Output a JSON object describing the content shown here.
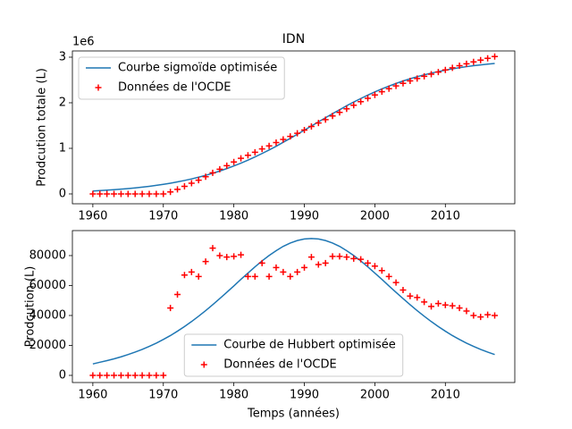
{
  "chart_data": [
    {
      "type": "line",
      "title": "IDN",
      "y_label": "Prodcution totale (L)",
      "y_offset_label": "1e6",
      "x": [
        1960,
        1961,
        1962,
        1963,
        1964,
        1965,
        1966,
        1967,
        1968,
        1969,
        1970,
        1971,
        1972,
        1973,
        1974,
        1975,
        1976,
        1977,
        1978,
        1979,
        1980,
        1981,
        1982,
        1983,
        1984,
        1985,
        1986,
        1987,
        1988,
        1989,
        1990,
        1991,
        1992,
        1993,
        1994,
        1995,
        1996,
        1997,
        1998,
        1999,
        2000,
        2001,
        2002,
        2003,
        2004,
        2005,
        2006,
        2007,
        2008,
        2009,
        2010,
        2011,
        2012,
        2013,
        2014,
        2015,
        2016,
        2017
      ],
      "series": [
        {
          "name": "Courbe sigmoïde optimisée",
          "type": "line",
          "color": "#1f77b4",
          "values": [
            63700,
            73200,
            82500,
            92800,
            104600,
            117800,
            132400,
            149000,
            167400,
            187400,
            210600,
            236000,
            264000,
            295000,
            329300,
            367000,
            408200,
            453600,
            502500,
            556000,
            613200,
            675700,
            741300,
            812000,
            886900,
            964400,
            1045600,
            1133100,
            1218800,
            1308200,
            1398700,
            1490000,
            1581300,
            1671800,
            1761200,
            1846900,
            1934400,
            2015600,
            2093100,
            2168000,
            2238700,
            2304300,
            2366800,
            2424000,
            2477500,
            2526400,
            2571800,
            2613000,
            2650700,
            2685000,
            2716000,
            2744000,
            2769400,
            2792600,
            2812600,
            2831000,
            2847600,
            2862200
          ]
        },
        {
          "name": "Données de l'OCDE",
          "type": "scatter",
          "color": "#ff0000",
          "values": [
            0,
            0,
            0,
            0,
            0,
            0,
            0,
            0,
            0,
            0,
            0,
            45000,
            99000,
            166000,
            235000,
            301000,
            377000,
            462000,
            542000,
            621000,
            700500,
            781000,
            847000,
            913000,
            988000,
            1054000,
            1126000,
            1195000,
            1261000,
            1330000,
            1402000,
            1481000,
            1555000,
            1630000,
            1709500,
            1789000,
            1868000,
            1946000,
            2023500,
            2098500,
            2171500,
            2241500,
            2307500,
            2369500,
            2426500,
            2479500,
            2531500,
            2580500,
            2626500,
            2674500,
            2721500,
            2768000,
            2813000,
            2856000,
            2896000,
            2935000,
            2975500,
            3015500
          ]
        }
      ],
      "xlim": [
        1957.1,
        2019.85
      ],
      "xticks": [
        1960,
        1970,
        1980,
        1990,
        2000,
        2010
      ],
      "ylim": [
        -216000,
        3137000
      ],
      "yticks": [
        0,
        {
          "value": 1000000,
          "label": "1"
        },
        {
          "value": 2000000,
          "label": "2"
        },
        {
          "value": 3000000,
          "label": "3"
        }
      ],
      "legend": "upper left"
    },
    {
      "type": "line",
      "y_label": "Prodcution (L)",
      "x_label": "Temps (années)",
      "x": [
        1960,
        1961,
        1962,
        1963,
        1964,
        1965,
        1966,
        1967,
        1968,
        1969,
        1970,
        1971,
        1972,
        1973,
        1974,
        1975,
        1976,
        1977,
        1978,
        1979,
        1980,
        1981,
        1982,
        1983,
        1984,
        1985,
        1986,
        1987,
        1988,
        1989,
        1990,
        1991,
        1992,
        1993,
        1994,
        1995,
        1996,
        1997,
        1998,
        1999,
        2000,
        2001,
        2002,
        2003,
        2004,
        2005,
        2006,
        2007,
        2008,
        2009,
        2010,
        2011,
        2012,
        2013,
        2014,
        2015,
        2016,
        2017
      ],
      "series": [
        {
          "name": "Courbe de Hubbert optimisée",
          "type": "line",
          "color": "#1f77b4",
          "values": [
            7650,
            8760,
            9850,
            11040,
            12380,
            13890,
            15540,
            17370,
            19390,
            21550,
            23970,
            26590,
            29510,
            32620,
            35940,
            39490,
            43230,
            47190,
            51270,
            55490,
            59750,
            64100,
            68330,
            72480,
            76430,
            80040,
            83280,
            86160,
            88380,
            90060,
            91070,
            91411,
            91070,
            90060,
            88380,
            86160,
            83280,
            80040,
            76430,
            72480,
            68330,
            64100,
            59750,
            55490,
            51270,
            47190,
            43230,
            39490,
            35940,
            32620,
            29510,
            26590,
            23970,
            21550,
            19390,
            17370,
            15540,
            13890
          ]
        },
        {
          "name": "Données de l'OCDE",
          "type": "scatter",
          "color": "#ff0000",
          "values": [
            0,
            0,
            0,
            0,
            0,
            0,
            0,
            0,
            0,
            0,
            0,
            45000,
            54000,
            67000,
            69000,
            66000,
            76000,
            85000,
            80000,
            79000,
            79500,
            80500,
            66000,
            66000,
            75000,
            66000,
            72000,
            69000,
            66000,
            69000,
            72000,
            79000,
            74000,
            75000,
            79500,
            79500,
            79000,
            78000,
            77500,
            75000,
            73000,
            70000,
            66000,
            62000,
            57000,
            53000,
            52000,
            49000,
            46000,
            48000,
            47000,
            46500,
            45000,
            43000,
            40000,
            39000,
            40500,
            40000
          ]
        }
      ],
      "xlim": [
        1957.1,
        2019.85
      ],
      "xticks": [
        1960,
        1970,
        1980,
        1990,
        2000,
        2010
      ],
      "ylim": [
        -4780,
        96700
      ],
      "yticks": [
        0,
        20000,
        40000,
        60000,
        80000
      ],
      "legend": "lower center"
    }
  ]
}
